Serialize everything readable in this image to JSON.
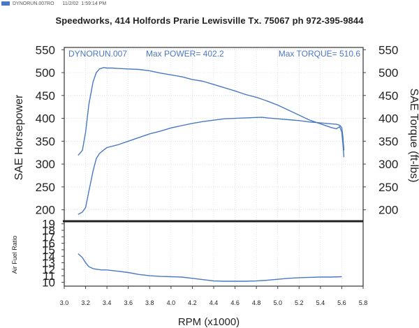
{
  "print_header": {
    "filename": "DYNORUN.007RO",
    "date": "11/2/02",
    "time": "1:59:14 PM"
  },
  "shop_line": "Speedworks, 414 Holfords Prarie Lewisville Tx. 75067  ph 972-395-9844",
  "colors": {
    "curve": "#4a78c2",
    "frame": "#333333",
    "divider": "#222222",
    "tick": "#444444",
    "grid": "#bfc7d6"
  },
  "chart_data": [
    {
      "type": "line",
      "title": "",
      "run_label": "DYNORUN.007",
      "max_power_label": "Max POWER= 402.2",
      "max_torque_label": "Max TORQUE= 510.6",
      "ylabel_left": "SAE Horsepower",
      "ylabel_right": "SAE Torque (ft-lbs)",
      "ylim": [
        175,
        555
      ],
      "yticks": [
        200,
        250,
        300,
        350,
        400,
        450,
        500,
        550
      ],
      "ytick_labels": [
        "200",
        "250",
        "300",
        "350",
        "400",
        "450",
        "500",
        "550"
      ],
      "xlim": [
        3.0,
        5.8
      ],
      "grid": true,
      "series": [
        {
          "name": "",
          "x": [
            3.13,
            3.17,
            3.2,
            3.23,
            3.27,
            3.3,
            3.33,
            3.37,
            3.4,
            3.45,
            3.5,
            3.6,
            3.7,
            3.8,
            3.9,
            4.0,
            4.1,
            4.2,
            4.3,
            4.4,
            4.5,
            4.6,
            4.7,
            4.8,
            4.9,
            5.0,
            5.1,
            5.2,
            5.3,
            5.4,
            5.5,
            5.55,
            5.58,
            5.6,
            5.61,
            5.62
          ],
          "values": [
            319,
            330,
            370,
            430,
            480,
            500,
            508,
            511,
            510,
            510,
            509,
            508,
            507,
            504,
            499,
            495,
            491,
            485,
            481,
            474,
            467,
            460,
            452,
            446,
            438,
            429,
            418,
            407,
            396,
            388,
            380,
            377,
            382,
            370,
            345,
            315
          ]
        },
        {
          "name": "",
          "x": [
            3.13,
            3.17,
            3.2,
            3.23,
            3.27,
            3.3,
            3.33,
            3.37,
            3.4,
            3.5,
            3.6,
            3.7,
            3.8,
            3.9,
            4.0,
            4.1,
            4.2,
            4.3,
            4.4,
            4.5,
            4.6,
            4.7,
            4.8,
            4.85,
            4.9,
            5.0,
            5.1,
            5.2,
            5.3,
            5.4,
            5.5,
            5.55,
            5.58,
            5.6,
            5.61,
            5.62
          ],
          "values": [
            190,
            195,
            205,
            240,
            285,
            312,
            323,
            331,
            336,
            342,
            350,
            358,
            366,
            372,
            379,
            384,
            389,
            393,
            396,
            399,
            400,
            401,
            402,
            402.2,
            401,
            399,
            397,
            395,
            392,
            390,
            388,
            387,
            385,
            380,
            360,
            330
          ]
        }
      ]
    },
    {
      "type": "line",
      "title": "",
      "ylabel": "Air Fuel Ratio",
      "ylim": [
        9.4,
        19.4
      ],
      "yticks": [
        10,
        11,
        12,
        13,
        14,
        15,
        16,
        17,
        18,
        19
      ],
      "ytick_labels": [
        "10",
        "11",
        "12",
        "13",
        "14",
        "15",
        "16",
        "17",
        "18",
        "19"
      ],
      "xlim": [
        3.0,
        5.8
      ],
      "xlabel": "RPM (x1000)",
      "xticks": [
        3.0,
        3.2,
        3.4,
        3.6,
        3.8,
        4.0,
        4.2,
        4.4,
        4.6,
        4.8,
        5.0,
        5.2,
        5.4,
        5.6,
        5.8
      ],
      "xtick_labels": [
        "3.0",
        "3.2",
        "3.4",
        "3.6",
        "3.8",
        "4.0",
        "4.2",
        "4.4",
        "4.6",
        "4.8",
        "5.0",
        "5.2",
        "5.4",
        "5.6",
        "5.8"
      ],
      "grid": true,
      "series": [
        {
          "name": "",
          "x": [
            3.13,
            3.17,
            3.2,
            3.23,
            3.27,
            3.3,
            3.35,
            3.4,
            3.5,
            3.6,
            3.7,
            3.8,
            3.9,
            4.0,
            4.1,
            4.2,
            4.3,
            4.4,
            4.5,
            4.6,
            4.7,
            4.8,
            4.9,
            5.0,
            5.1,
            5.2,
            5.3,
            5.4,
            5.5,
            5.6
          ],
          "values": [
            14.4,
            13.8,
            13.0,
            12.4,
            12.1,
            12.0,
            11.9,
            11.9,
            11.7,
            11.5,
            11.2,
            11.0,
            10.9,
            10.85,
            10.8,
            10.6,
            10.4,
            10.2,
            10.15,
            10.15,
            10.15,
            10.2,
            10.3,
            10.45,
            10.6,
            10.7,
            10.75,
            10.8,
            10.8,
            10.85
          ]
        }
      ]
    }
  ]
}
